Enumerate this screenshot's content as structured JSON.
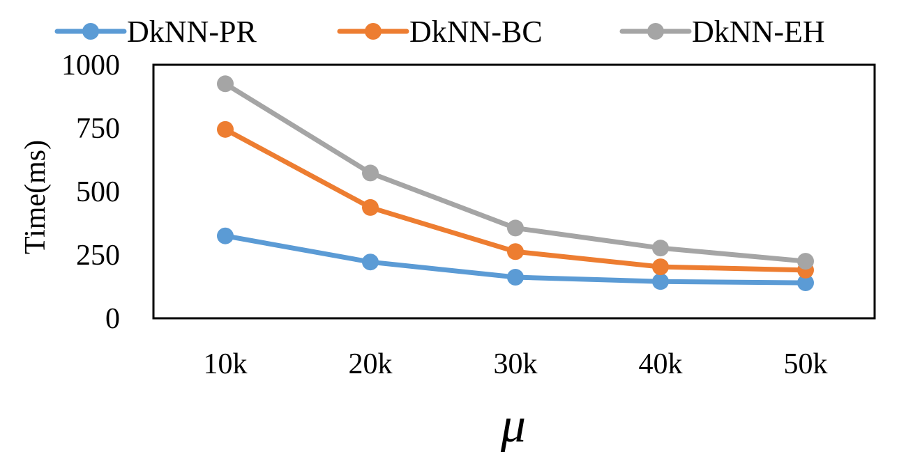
{
  "chart_data": {
    "type": "line",
    "title": "",
    "xlabel": "μ",
    "ylabel": "Time(ms)",
    "categories": [
      "10k",
      "20k",
      "30k",
      "40k",
      "50k"
    ],
    "ylim": [
      0,
      1000
    ],
    "yticks": [
      0,
      250,
      500,
      750,
      1000
    ],
    "grid": false,
    "legend_position": "top",
    "series": [
      {
        "name": "DkNN-PR",
        "color": "#5b9bd5",
        "values": [
          325,
          222,
          162,
          145,
          140
        ]
      },
      {
        "name": "DkNN-BC",
        "color": "#ed7d31",
        "values": [
          745,
          437,
          263,
          203,
          190
        ]
      },
      {
        "name": "DkNN-EH",
        "color": "#a5a5a5",
        "values": [
          925,
          573,
          356,
          277,
          225
        ]
      }
    ]
  }
}
